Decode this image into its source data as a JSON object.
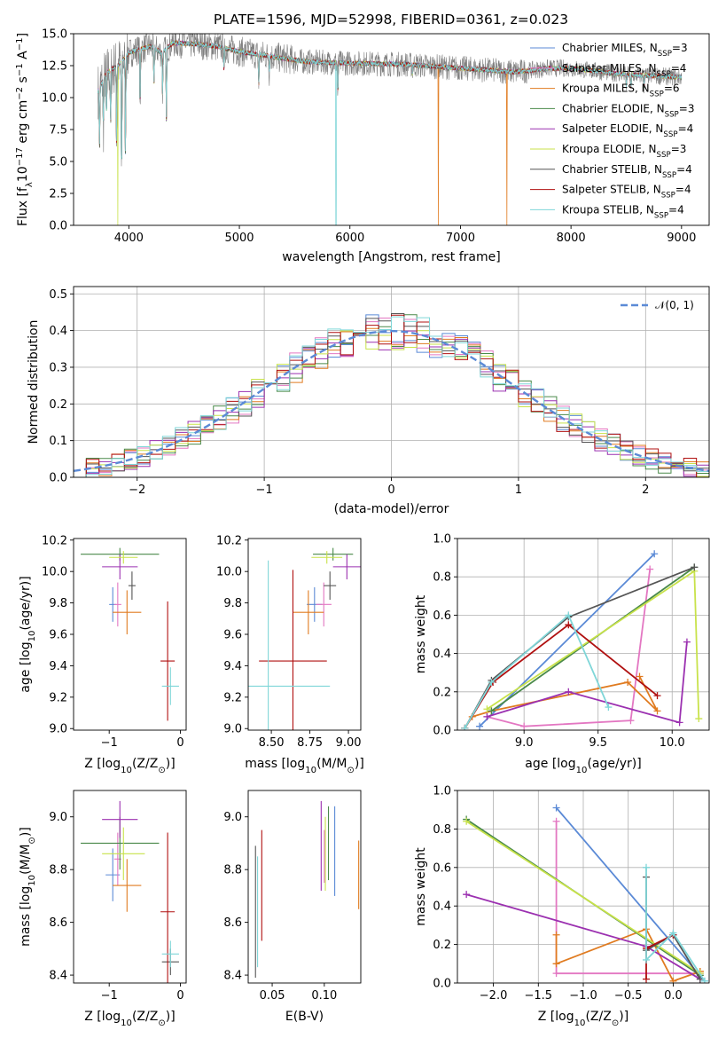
{
  "figure": {
    "title": "PLATE=1596, MJD=52998, FIBERID=0361, z=0.023"
  },
  "series_names": [
    "Chabrier MILES, N_SSP=3",
    "Salpeter MILES, N_SSP=4",
    "Kroupa MILES, N_SSP=6",
    "Chabrier ELODIE, N_SSP=3",
    "Salpeter ELODIE, N_SSP=4",
    "Kroupa ELODIE, N_SSP=3",
    "Chabrier STELIB, N_SSP=4",
    "Salpeter STELIB, N_SSP=4",
    "Kroupa STELIB, N_SSP=4"
  ],
  "colors": {
    "Chabrier MILES": "#5b8ad6",
    "Salpeter MILES": "#e377c2",
    "Kroupa MILES": "#e07b20",
    "Chabrier ELODIE": "#4a8a4a",
    "Salpeter ELODIE": "#9b30b0",
    "Kroupa ELODIE": "#c8e24a",
    "Chabrier STELIB": "#555555",
    "Salpeter STELIB": "#b01010",
    "Kroupa STELIB": "#7fd6d8",
    "gaussian": "#5b8ad6",
    "data": "#808080"
  },
  "chart_data": [
    {
      "id": "spectrum",
      "type": "line",
      "title": "PLATE=1596, MJD=52998, FIBERID=0361, z=0.023",
      "xlabel": "wavelength [Angstrom, rest frame]",
      "ylabel": "Flux [f_λ 10^-17 erg cm^-2 s^-1 A^-1]",
      "xlim": [
        3500,
        9250
      ],
      "ylim": [
        0,
        15
      ],
      "xticks": [
        "4000",
        "5000",
        "6000",
        "7000",
        "8000",
        "9000"
      ],
      "yticks": [
        "0.0",
        "2.5",
        "5.0",
        "7.5",
        "10.0",
        "12.5",
        "15.0"
      ],
      "legend_position": "top-right",
      "legend_labels": [
        {
          "base": "Chabrier MILES, N",
          "sub": "SSP",
          "val": "=3"
        },
        {
          "base": "Salpeter MILES, N",
          "sub": "SSP",
          "val": "=4"
        },
        {
          "base": "Kroupa MILES, N",
          "sub": "SSP",
          "val": "=6"
        },
        {
          "base": "Chabrier ELODIE, N",
          "sub": "SSP",
          "val": "=3"
        },
        {
          "base": "Salpeter ELODIE, N",
          "sub": "SSP",
          "val": "=4"
        },
        {
          "base": "Kroupa ELODIE, N",
          "sub": "SSP",
          "val": "=3"
        },
        {
          "base": "Chabrier STELIB, N",
          "sub": "SSP",
          "val": "=4"
        },
        {
          "base": "Salpeter STELIB, N",
          "sub": "SSP",
          "val": "=4"
        },
        {
          "base": "Kroupa STELIB, N",
          "sub": "SSP",
          "val": "=4"
        }
      ],
      "continuum": {
        "x": [
          3720,
          3800,
          3900,
          4000,
          4100,
          4200,
          4300,
          4400,
          4600,
          4800,
          5000,
          5300,
          5600,
          6000,
          6500,
          7000,
          7500,
          7800,
          8000,
          8500,
          9000
        ],
        "y": [
          10.5,
          12.0,
          12.5,
          13.5,
          13.8,
          14.0,
          13.5,
          14.3,
          14.2,
          14.0,
          13.6,
          13.2,
          12.8,
          12.7,
          12.6,
          12.3,
          12.0,
          12.3,
          12.3,
          11.8,
          11.6
        ]
      },
      "absorption_lines": [
        {
          "x": 3735,
          "depth": 0.45
        },
        {
          "x": 3770,
          "depth": 0.35
        },
        {
          "x": 3798,
          "depth": 0.3
        },
        {
          "x": 3835,
          "depth": 0.35
        },
        {
          "x": 3889,
          "depth": 0.5
        },
        {
          "x": 3934,
          "depth": 0.75
        },
        {
          "x": 3969,
          "depth": 0.6
        },
        {
          "x": 4102,
          "depth": 0.35
        },
        {
          "x": 4227,
          "depth": 0.2
        },
        {
          "x": 4305,
          "depth": 0.25
        },
        {
          "x": 4340,
          "depth": 0.4
        },
        {
          "x": 4861,
          "depth": 0.12
        },
        {
          "x": 5175,
          "depth": 0.18
        },
        {
          "x": 5270,
          "depth": 0.1
        },
        {
          "x": 5890,
          "depth": 0.2
        },
        {
          "x": 6563,
          "depth": 0.06
        },
        {
          "x": 8500,
          "depth": 0.08
        },
        {
          "x": 8542,
          "depth": 0.1
        },
        {
          "x": 8662,
          "depth": 0.09
        }
      ],
      "model_drops": [
        {
          "x": 3900,
          "series": "Kroupa ELODIE",
          "bottom": 0
        },
        {
          "x": 5875,
          "series": "Kroupa STELIB",
          "bottom": 0
        },
        {
          "x": 6800,
          "series": "Kroupa MILES",
          "bottom": 0
        },
        {
          "x": 7420,
          "series": "Kroupa MILES",
          "bottom": 0
        }
      ],
      "data_noise": {
        "x_start": 3720,
        "x_end": 9000
      }
    },
    {
      "id": "residuals",
      "type": "line",
      "xlabel": "(data-model)/error",
      "ylabel": "Normed distribution",
      "xlim": [
        -2.5,
        2.5
      ],
      "ylim": [
        0,
        0.52
      ],
      "grid": true,
      "xticks": [
        "−2",
        "−1",
        "0",
        "1",
        "2"
      ],
      "yticks": [
        "0.0",
        "0.1",
        "0.2",
        "0.3",
        "0.4",
        "0.5"
      ],
      "legend_position": "top-right",
      "legend_label": "𝒩(0, 1)",
      "gaussian": {
        "mu": 0,
        "sigma": 1
      },
      "histogram": {
        "x_start": -2.5,
        "bin_width": 0.1,
        "bins": 50
      }
    },
    {
      "id": "age_vs_Z",
      "type": "scatter",
      "xlabel": "Z [log10(Z/Z⊙)]",
      "ylabel": "age [log10(age/yr)]",
      "xlim": [
        -1.5,
        0.08
      ],
      "ylim": [
        8.99,
        10.21
      ],
      "xticks": [
        "−1",
        "0"
      ],
      "yticks": [
        "9.0",
        "9.2",
        "9.4",
        "9.6",
        "9.8",
        "10.0",
        "10.2"
      ],
      "points": [
        {
          "series": "Chabrier MILES",
          "x": -0.95,
          "xerr": 0.05,
          "y": 9.79,
          "yerr": 0.11
        },
        {
          "series": "Salpeter MILES",
          "x": -0.88,
          "xerr": 0.05,
          "y": 9.79,
          "yerr": 0.14
        },
        {
          "series": "Kroupa MILES",
          "x": -0.75,
          "xerr": 0.2,
          "y": 9.74,
          "yerr": 0.14
        },
        {
          "series": "Chabrier ELODIE",
          "x": -0.85,
          "xerr": 0.55,
          "y": 10.11,
          "yerr": 0.04
        },
        {
          "series": "Salpeter ELODIE",
          "x": -0.85,
          "xerr": 0.25,
          "y": 10.03,
          "yerr": 0.08
        },
        {
          "series": "Kroupa ELODIE",
          "x": -0.8,
          "xerr": 0.2,
          "y": 10.09,
          "yerr": 0.04
        },
        {
          "series": "Chabrier STELIB",
          "x": -0.68,
          "xerr": 0.05,
          "y": 9.91,
          "yerr": 0.09
        },
        {
          "series": "Salpeter STELIB",
          "x": -0.18,
          "xerr": 0.1,
          "y": 9.43,
          "yerr": 0.38
        },
        {
          "series": "Kroupa STELIB",
          "x": -0.14,
          "xerr": 0.12,
          "y": 9.27,
          "yerr": 0.12
        }
      ]
    },
    {
      "id": "age_vs_mass",
      "type": "scatter",
      "xlabel": "mass [log10(M/M⊙)]",
      "ylabel": "",
      "xlim": [
        8.35,
        9.08
      ],
      "ylim": [
        8.99,
        10.21
      ],
      "xticks": [
        "8.50",
        "8.75",
        "9.00"
      ],
      "yticks": [
        "9.0",
        "9.2",
        "9.4",
        "9.6",
        "9.8",
        "10.0",
        "10.2"
      ],
      "points": [
        {
          "series": "Chabrier MILES",
          "x": 8.78,
          "xerr": 0.05,
          "y": 9.79,
          "yerr": 0.11
        },
        {
          "series": "Salpeter MILES",
          "x": 8.84,
          "xerr": 0.05,
          "y": 9.79,
          "yerr": 0.14
        },
        {
          "series": "Kroupa MILES",
          "x": 8.74,
          "xerr": 0.1,
          "y": 9.74,
          "yerr": 0.14
        },
        {
          "series": "Chabrier ELODIE",
          "x": 8.9,
          "xerr": 0.13,
          "y": 10.11,
          "yerr": 0.04
        },
        {
          "series": "Salpeter ELODIE",
          "x": 8.99,
          "xerr": 0.09,
          "y": 10.03,
          "yerr": 0.08
        },
        {
          "series": "Kroupa ELODIE",
          "x": 8.86,
          "xerr": 0.1,
          "y": 10.09,
          "yerr": 0.04
        },
        {
          "series": "Chabrier STELIB",
          "x": 8.88,
          "xerr": 0.04,
          "y": 9.91,
          "yerr": 0.09
        },
        {
          "series": "Salpeter STELIB",
          "x": 8.64,
          "xerr": 0.22,
          "y": 9.43,
          "yerr": 0.58
        },
        {
          "series": "Kroupa STELIB",
          "x": 8.48,
          "xerr": 0.4,
          "y": 9.27,
          "yerr": 0.8
        }
      ]
    },
    {
      "id": "massweight_vs_age",
      "type": "line",
      "xlabel": "age [log10(age/yr)]",
      "ylabel": "mass weight",
      "xlim": [
        8.55,
        10.25
      ],
      "ylim": [
        0,
        1
      ],
      "grid": true,
      "xticks": [
        "9.0",
        "9.5",
        "10.0"
      ],
      "yticks": [
        "0.0",
        "0.2",
        "0.4",
        "0.6",
        "0.8",
        "1.0"
      ],
      "series": [
        {
          "name": "Chabrier MILES",
          "x": [
            8.7,
            9.88
          ],
          "y": [
            0.02,
            0.92
          ]
        },
        {
          "name": "Salpeter MILES",
          "x": [
            8.75,
            9.0,
            9.72,
            9.85
          ],
          "y": [
            0.07,
            0.02,
            0.05,
            0.84
          ]
        },
        {
          "name": "Kroupa MILES",
          "x": [
            8.6,
            8.65,
            8.78,
            9.7,
            9.9,
            9.78
          ],
          "y": [
            0.01,
            0.07,
            0.1,
            0.25,
            0.1,
            0.28
          ]
        },
        {
          "name": "Chabrier ELODIE",
          "x": [
            8.78,
            10.15
          ],
          "y": [
            0.1,
            0.85
          ]
        },
        {
          "name": "Salpeter ELODIE",
          "x": [
            8.75,
            9.3,
            10.05,
            10.1
          ],
          "y": [
            0.07,
            0.2,
            0.04,
            0.46
          ]
        },
        {
          "name": "Kroupa ELODIE",
          "x": [
            8.75,
            10.15,
            10.18
          ],
          "y": [
            0.11,
            0.83,
            0.06
          ]
        },
        {
          "name": "Chabrier STELIB",
          "x": [
            8.6,
            8.78,
            9.3,
            10.15
          ],
          "y": [
            0.01,
            0.26,
            0.59,
            0.85
          ]
        },
        {
          "name": "Salpeter STELIB",
          "x": [
            8.6,
            8.79,
            9.3,
            9.9
          ],
          "y": [
            0.01,
            0.25,
            0.55,
            0.18
          ]
        },
        {
          "name": "Kroupa STELIB",
          "x": [
            8.6,
            8.78,
            9.3,
            9.57
          ],
          "y": [
            0.01,
            0.25,
            0.6,
            0.12
          ]
        }
      ]
    },
    {
      "id": "mass_vs_Z",
      "type": "scatter",
      "xlabel": "Z [log10(Z/Z⊙)]",
      "ylabel": "mass [log10(M/M⊙)]",
      "xlim": [
        -1.5,
        0.08
      ],
      "ylim": [
        8.37,
        9.1
      ],
      "xticks": [
        "−1",
        "0"
      ],
      "yticks": [
        "8.4",
        "8.6",
        "8.8",
        "9.0"
      ],
      "points": [
        {
          "series": "Chabrier MILES",
          "x": -0.95,
          "xerr": 0.1,
          "y": 8.78,
          "yerr": 0.1
        },
        {
          "series": "Salpeter MILES",
          "x": -0.88,
          "xerr": 0.05,
          "y": 8.84,
          "yerr": 0.1
        },
        {
          "series": "Kroupa MILES",
          "x": -0.75,
          "xerr": 0.2,
          "y": 8.74,
          "yerr": 0.1
        },
        {
          "series": "Chabrier ELODIE",
          "x": -0.85,
          "xerr": 0.55,
          "y": 8.9,
          "yerr": 0.1
        },
        {
          "series": "Salpeter ELODIE",
          "x": -0.85,
          "xerr": 0.25,
          "y": 8.99,
          "yerr": 0.07
        },
        {
          "series": "Kroupa ELODIE",
          "x": -0.8,
          "xerr": 0.3,
          "y": 8.86,
          "yerr": 0.1
        },
        {
          "series": "Chabrier STELIB",
          "x": -0.14,
          "xerr": 0.12,
          "y": 8.45,
          "yerr": 0.05
        },
        {
          "series": "Salpeter STELIB",
          "x": -0.18,
          "xerr": 0.1,
          "y": 8.64,
          "yerr": 0.3
        },
        {
          "series": "Kroupa STELIB",
          "x": -0.14,
          "xerr": 0.12,
          "y": 8.48,
          "yerr": 0.05
        }
      ]
    },
    {
      "id": "mass_vs_ebv",
      "type": "scatter",
      "xlabel": "E(B-V)",
      "ylabel": "",
      "xlim": [
        0.027,
        0.135
      ],
      "ylim": [
        8.37,
        9.1
      ],
      "xticks": [
        "0.05",
        "0.10"
      ],
      "yticks": [
        "8.4",
        "8.6",
        "8.8",
        "9.0"
      ],
      "points": [
        {
          "series": "Chabrier MILES",
          "x": 0.11,
          "y": 8.87,
          "yerr": 0.17
        },
        {
          "series": "Salpeter MILES",
          "x": 0.1,
          "y": 8.85,
          "yerr": 0.1
        },
        {
          "series": "Kroupa MILES",
          "x": 0.133,
          "y": 8.78,
          "yerr": 0.13
        },
        {
          "series": "Chabrier ELODIE",
          "x": 0.104,
          "y": 8.9,
          "yerr": 0.14
        },
        {
          "series": "Salpeter ELODIE",
          "x": 0.097,
          "y": 8.89,
          "yerr": 0.17
        },
        {
          "series": "Kroupa ELODIE",
          "x": 0.101,
          "y": 8.86,
          "yerr": 0.14
        },
        {
          "series": "Chabrier STELIB",
          "x": 0.034,
          "y": 8.64,
          "yerr": 0.25
        },
        {
          "series": "Salpeter STELIB",
          "x": 0.04,
          "y": 8.74,
          "yerr": 0.21
        },
        {
          "series": "Kroupa STELIB",
          "x": 0.036,
          "y": 8.64,
          "yerr": 0.21
        }
      ]
    },
    {
      "id": "massweight_vs_Z",
      "type": "line",
      "xlabel": "Z [log10(Z/Z⊙)]",
      "ylabel": "mass weight",
      "xlim": [
        -2.4,
        0.4
      ],
      "ylim": [
        0,
        1
      ],
      "grid": true,
      "xticks": [
        "−2.0",
        "−1.5",
        "−1.0",
        "−0.5",
        "0.0"
      ],
      "yticks": [
        "0.0",
        "0.2",
        "0.4",
        "0.6",
        "0.8",
        "1.0"
      ],
      "series": [
        {
          "name": "Chabrier MILES",
          "x": [
            -1.3,
            0.35
          ],
          "y": [
            0.91,
            0.01
          ]
        },
        {
          "name": "Salpeter MILES",
          "x": [
            -1.3,
            -1.3,
            0.3
          ],
          "y": [
            0.84,
            0.05,
            0.05
          ]
        },
        {
          "name": "Kroupa MILES",
          "x": [
            -1.3,
            -1.3,
            -0.3,
            0.0,
            0.3,
            0.3
          ],
          "y": [
            0.25,
            0.1,
            0.28,
            0.01,
            0.06,
            0.06
          ]
        },
        {
          "name": "Chabrier ELODIE",
          "x": [
            -2.3,
            0.3
          ],
          "y": [
            0.85,
            0.04
          ]
        },
        {
          "name": "Salpeter ELODIE",
          "x": [
            -2.3,
            -0.3,
            0.3
          ],
          "y": [
            0.46,
            0.19,
            0.02
          ]
        },
        {
          "name": "Kroupa ELODIE",
          "x": [
            -2.3,
            0.3
          ],
          "y": [
            0.84,
            0.05
          ]
        },
        {
          "name": "Chabrier STELIB",
          "x": [
            -0.3,
            -0.3,
            0.0,
            0.3
          ],
          "y": [
            0.55,
            0.17,
            0.25,
            0.02
          ]
        },
        {
          "name": "Salpeter STELIB",
          "x": [
            -0.3,
            -0.3,
            0.0
          ],
          "y": [
            0.02,
            0.18,
            0.25
          ]
        },
        {
          "name": "Kroupa STELIB",
          "x": [
            -0.3,
            -0.3,
            0.0,
            0.35
          ],
          "y": [
            0.6,
            0.12,
            0.26,
            0.01
          ]
        }
      ]
    }
  ]
}
